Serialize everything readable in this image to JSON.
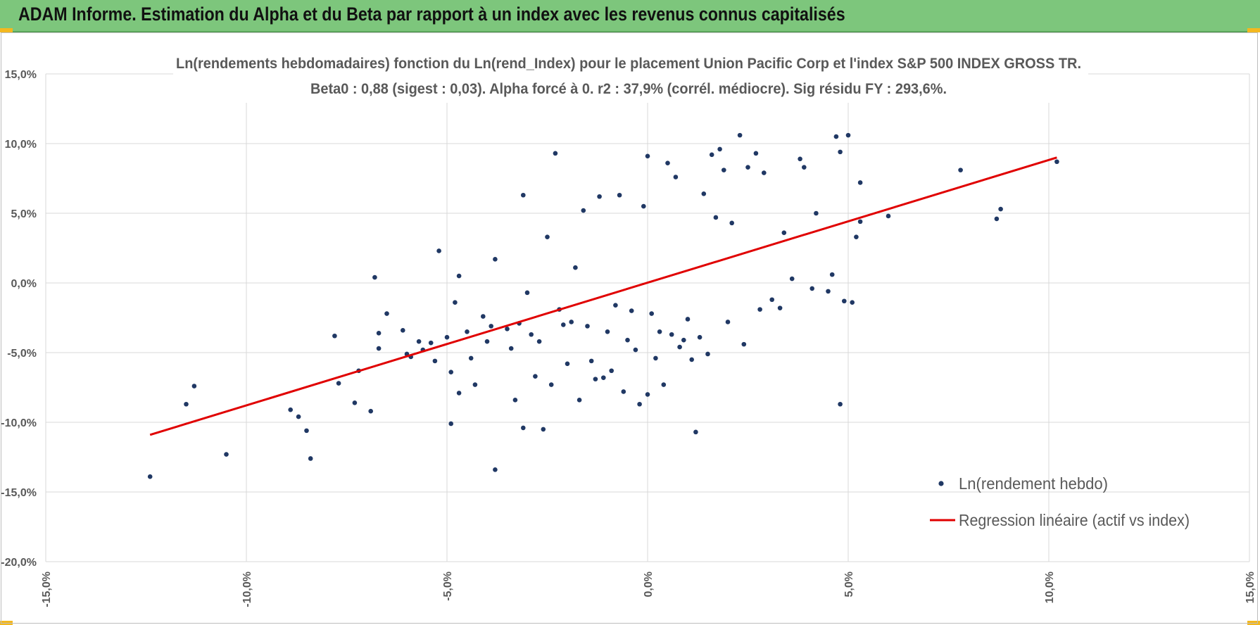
{
  "header": {
    "title": "ADAM Informe. Estimation du Alpha et du Beta par rapport à un index avec les revenus connus capitalisés"
  },
  "colors": {
    "header_bg": "#7dc67c",
    "corner_accent": "#f3b81f",
    "points": "#203864",
    "regression": "#e00000"
  },
  "chart_data": {
    "type": "scatter",
    "title": "Ln(rendements hebdomadaires) fonction du Ln(rend_Index) pour le placement Union Pacific Corp et l'index S&P 500 INDEX GROSS TR.",
    "subtitle": "Beta0 : 0,88 (sigest : 0,03). Alpha forcé à 0. r2 : 37,9% (corrél. médiocre). Sig résidu FY : 293,6%.",
    "xlim": [
      -15,
      15
    ],
    "ylim": [
      -20,
      15
    ],
    "x_ticks": [
      "-15,0%",
      "-10,0%",
      "-5,0%",
      "0,0%",
      "5,0%",
      "10,0%",
      "15,0%"
    ],
    "y_ticks": [
      "15,0%",
      "10,0%",
      "5,0%",
      "0,0%",
      "-5,0%",
      "-10,0%",
      "-15,0%",
      "-20,0%"
    ],
    "grid": true,
    "legend_position": "bottom-right",
    "series": [
      {
        "name": "Ln(rendement hebdo)",
        "kind": "points",
        "points": [
          [
            -12.4,
            -13.9
          ],
          [
            -11.5,
            -8.7
          ],
          [
            -11.3,
            -7.4
          ],
          [
            -10.5,
            -12.3
          ],
          [
            -8.9,
            -9.1
          ],
          [
            -8.7,
            -9.6
          ],
          [
            -8.5,
            -10.6
          ],
          [
            -8.4,
            -12.6
          ],
          [
            -7.8,
            -3.8
          ],
          [
            -7.7,
            -7.2
          ],
          [
            -7.3,
            -8.6
          ],
          [
            -7.2,
            -6.3
          ],
          [
            -6.9,
            -9.2
          ],
          [
            -6.8,
            0.4
          ],
          [
            -6.7,
            -3.6
          ],
          [
            -6.7,
            -4.7
          ],
          [
            -6.5,
            -2.2
          ],
          [
            -6.1,
            -3.4
          ],
          [
            -6.0,
            -5.1
          ],
          [
            -5.9,
            -5.3
          ],
          [
            -5.7,
            -4.2
          ],
          [
            -5.6,
            -4.8
          ],
          [
            -5.4,
            -4.3
          ],
          [
            -5.3,
            -5.6
          ],
          [
            -5.2,
            2.3
          ],
          [
            -5.0,
            -3.9
          ],
          [
            -4.9,
            -6.4
          ],
          [
            -4.9,
            -10.1
          ],
          [
            -4.8,
            -1.4
          ],
          [
            -4.7,
            0.5
          ],
          [
            -4.7,
            -7.9
          ],
          [
            -4.5,
            -3.5
          ],
          [
            -4.4,
            -5.4
          ],
          [
            -4.3,
            -7.3
          ],
          [
            -4.1,
            -2.4
          ],
          [
            -4.0,
            -4.2
          ],
          [
            -3.9,
            -3.1
          ],
          [
            -3.8,
            -13.4
          ],
          [
            -3.8,
            1.7
          ],
          [
            -3.5,
            -3.3
          ],
          [
            -3.4,
            -4.7
          ],
          [
            -3.3,
            -8.4
          ],
          [
            -3.2,
            -2.9
          ],
          [
            -3.1,
            -10.4
          ],
          [
            -3.1,
            6.3
          ],
          [
            -3.0,
            -0.7
          ],
          [
            -2.9,
            -3.7
          ],
          [
            -2.8,
            -6.7
          ],
          [
            -2.7,
            -4.2
          ],
          [
            -2.6,
            -10.5
          ],
          [
            -2.5,
            3.3
          ],
          [
            -2.4,
            -7.3
          ],
          [
            -2.3,
            9.3
          ],
          [
            -2.2,
            -1.9
          ],
          [
            -2.1,
            -3.0
          ],
          [
            -2.0,
            -5.8
          ],
          [
            -1.9,
            -2.8
          ],
          [
            -1.8,
            1.1
          ],
          [
            -1.7,
            -8.4
          ],
          [
            -1.6,
            5.2
          ],
          [
            -1.5,
            -3.1
          ],
          [
            -1.4,
            -5.6
          ],
          [
            -1.3,
            -6.9
          ],
          [
            -1.2,
            6.2
          ],
          [
            -1.1,
            -6.8
          ],
          [
            -1.0,
            -3.5
          ],
          [
            -0.9,
            -6.3
          ],
          [
            -0.8,
            -1.6
          ],
          [
            -0.7,
            6.3
          ],
          [
            -0.6,
            -7.8
          ],
          [
            -0.5,
            -4.1
          ],
          [
            -0.4,
            -2.0
          ],
          [
            -0.3,
            -4.8
          ],
          [
            -0.2,
            -8.7
          ],
          [
            -0.1,
            5.5
          ],
          [
            0.0,
            -8.0
          ],
          [
            0.0,
            9.1
          ],
          [
            0.1,
            -2.2
          ],
          [
            0.2,
            -5.4
          ],
          [
            0.3,
            -3.5
          ],
          [
            0.4,
            -7.3
          ],
          [
            0.5,
            8.6
          ],
          [
            0.6,
            -3.7
          ],
          [
            0.7,
            7.6
          ],
          [
            0.8,
            -4.6
          ],
          [
            0.9,
            -4.1
          ],
          [
            1.0,
            -2.6
          ],
          [
            1.1,
            -5.5
          ],
          [
            1.2,
            -10.7
          ],
          [
            1.3,
            -3.9
          ],
          [
            1.4,
            6.4
          ],
          [
            1.5,
            -5.1
          ],
          [
            1.6,
            9.2
          ],
          [
            1.7,
            4.7
          ],
          [
            1.8,
            9.6
          ],
          [
            1.9,
            8.1
          ],
          [
            2.0,
            -2.8
          ],
          [
            2.1,
            4.3
          ],
          [
            2.3,
            10.6
          ],
          [
            2.4,
            -4.4
          ],
          [
            2.5,
            8.3
          ],
          [
            2.7,
            9.3
          ],
          [
            2.8,
            -1.9
          ],
          [
            2.9,
            7.9
          ],
          [
            3.1,
            -1.2
          ],
          [
            3.3,
            -1.8
          ],
          [
            3.4,
            3.6
          ],
          [
            3.6,
            0.3
          ],
          [
            3.8,
            8.9
          ],
          [
            3.9,
            8.3
          ],
          [
            4.1,
            -0.4
          ],
          [
            4.2,
            5.0
          ],
          [
            4.5,
            -0.6
          ],
          [
            4.6,
            0.6
          ],
          [
            4.7,
            10.5
          ],
          [
            4.8,
            9.4
          ],
          [
            4.8,
            -8.7
          ],
          [
            4.9,
            -1.3
          ],
          [
            5.0,
            10.6
          ],
          [
            5.1,
            -1.4
          ],
          [
            5.2,
            3.3
          ],
          [
            5.3,
            7.2
          ],
          [
            5.3,
            4.4
          ],
          [
            6.0,
            4.8
          ],
          [
            7.8,
            8.1
          ],
          [
            8.7,
            4.6
          ],
          [
            8.8,
            5.3
          ],
          [
            10.2,
            8.7
          ]
        ]
      },
      {
        "name": "Regression linéaire (actif vs index)",
        "kind": "line",
        "points": [
          [
            -12.4,
            -10.9
          ],
          [
            10.2,
            9.0
          ]
        ]
      }
    ]
  }
}
